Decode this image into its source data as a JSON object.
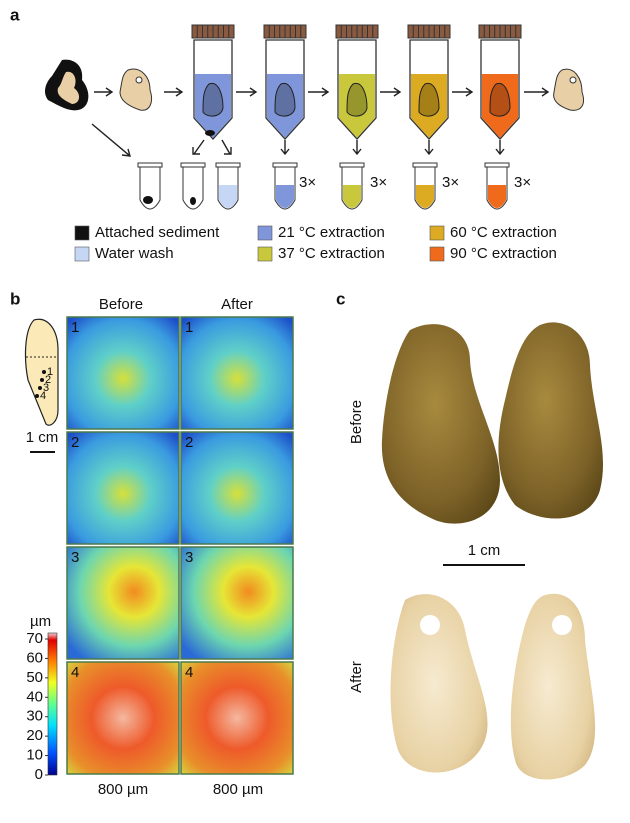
{
  "panel_a": {
    "label": "a",
    "legend": [
      {
        "text": "Attached sediment",
        "color": "#111111"
      },
      {
        "text": "Water wash",
        "color": "#c6d6f5"
      },
      {
        "text": "21 °C extraction",
        "color": "#7f97da"
      },
      {
        "text": "37 °C extraction",
        "color": "#c9c83c"
      },
      {
        "text": "60 °C extraction",
        "color": "#dcab22"
      },
      {
        "text": "90 °C extraction",
        "color": "#f06a1c"
      }
    ],
    "repeat_labels": [
      "3×",
      "3×",
      "3×",
      "3×"
    ]
  },
  "panel_b": {
    "label": "b",
    "col_headers": [
      "Before",
      "After"
    ],
    "row_labels": [
      "1",
      "2",
      "3",
      "4"
    ],
    "tooth_points": [
      "1",
      "2",
      "3",
      "4"
    ],
    "scale_label": "1 cm",
    "colorbar": {
      "unit": "µm",
      "ticks": [
        0,
        10,
        20,
        30,
        40,
        50,
        60,
        70
      ]
    },
    "width_labels": [
      "800 µm",
      "800 µm"
    ]
  },
  "panel_c": {
    "label": "c",
    "row_labels": [
      "Before",
      "After"
    ],
    "scale_label": "1 cm"
  }
}
